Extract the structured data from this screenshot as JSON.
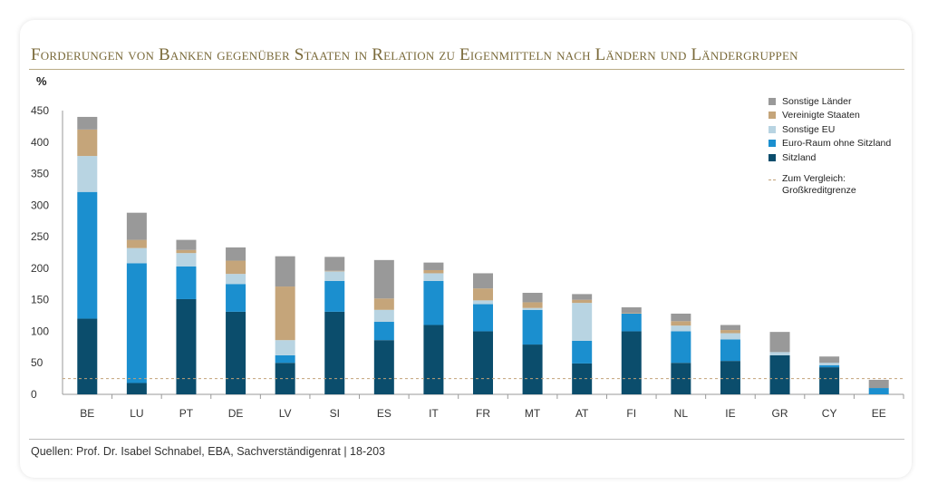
{
  "title": "Forderungen von Banken gegenüber Staaten in Relation zu Eigenmitteln nach Ländern und Ländergruppen",
  "source": "Quellen: Prof. Dr. Isabel Schnabel, EBA, Sachverständigenrat | 18-203",
  "colors": {
    "sitzland": "#0b4d6c",
    "euro_raum": "#1b8fcf",
    "sonstige_eu": "#b8d4e2",
    "usa": "#c5a57a",
    "sonstige_laender": "#999999",
    "reference": "#c2a37a",
    "axis": "#999999"
  },
  "chart_data": {
    "type": "bar",
    "stacked": true,
    "ylabel": "%",
    "ylim": [
      0,
      450
    ],
    "yticks": [
      0,
      50,
      100,
      150,
      200,
      250,
      300,
      350,
      400,
      450
    ],
    "grid": false,
    "legend_position": "top-right",
    "categories": [
      "BE",
      "LU",
      "PT",
      "DE",
      "LV",
      "SI",
      "ES",
      "IT",
      "FR",
      "MT",
      "AT",
      "FI",
      "NL",
      "IE",
      "GR",
      "CY",
      "EE"
    ],
    "series": [
      {
        "key": "sitzland",
        "name": "Sitzland",
        "values": [
          120,
          18,
          151,
          131,
          50,
          131,
          86,
          110,
          100,
          79,
          49,
          100,
          50,
          53,
          62,
          43,
          0
        ]
      },
      {
        "key": "euro_raum",
        "name": "Euro-Raum ohne Sitzland",
        "values": [
          201,
          190,
          52,
          44,
          12,
          49,
          29,
          70,
          43,
          55,
          36,
          28,
          50,
          34,
          0,
          3,
          10
        ]
      },
      {
        "key": "sonstige_eu",
        "name": "Sonstige EU",
        "values": [
          57,
          24,
          21,
          16,
          24,
          15,
          19,
          12,
          6,
          3,
          60,
          0,
          9,
          10,
          5,
          4,
          0
        ]
      },
      {
        "key": "usa",
        "name": "Vereinigte Staaten",
        "values": [
          42,
          13,
          5,
          21,
          85,
          1,
          18,
          5,
          19,
          9,
          5,
          1,
          7,
          5,
          0,
          0,
          0
        ]
      },
      {
        "key": "sonstige_laender",
        "name": "Sonstige Länder",
        "values": [
          20,
          43,
          16,
          21,
          48,
          22,
          61,
          12,
          24,
          15,
          9,
          9,
          12,
          8,
          32,
          10,
          13
        ]
      }
    ],
    "reference_line": {
      "name": "Zum Vergleich: Großkreditgrenze",
      "value": 25
    }
  }
}
